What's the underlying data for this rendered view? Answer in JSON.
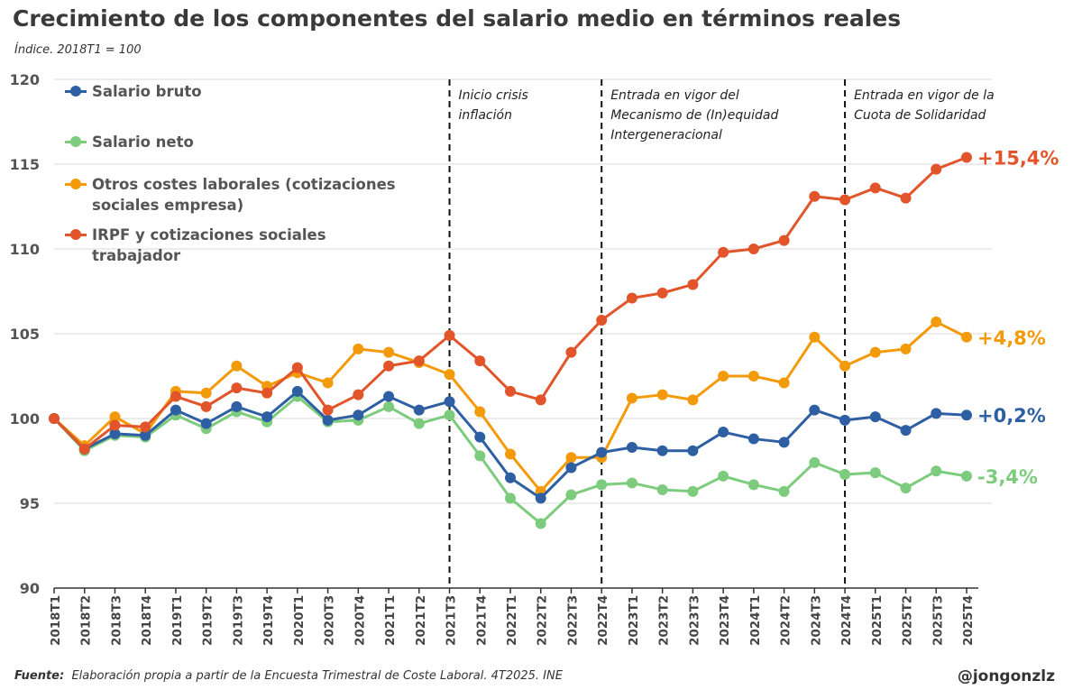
{
  "title": "Crecimiento de los componentes del salario medio en términos reales",
  "subtitle": "Índice. 2018T1 = 100",
  "source_label": "Fuente:",
  "source_text": "Elaboración propia a partir de la Encuesta Trimestral de Coste Laboral. 4T2025. INE",
  "handle": "@jongonzlz",
  "chart_data": {
    "type": "line",
    "title": "Crecimiento de los componentes del salario medio en términos reales",
    "ylabel": "Índice. 2018T1 = 100",
    "ylim": [
      90,
      120
    ],
    "yticks": [
      90,
      95,
      100,
      105,
      110,
      115,
      120
    ],
    "grid": true,
    "legend_position": "top-left",
    "categories": [
      "2018T1",
      "2018T2",
      "2018T3",
      "2018T4",
      "2019T1",
      "2019T2",
      "2019T3",
      "2019T4",
      "2020T1",
      "2020T3",
      "2020T4",
      "2021T1",
      "2021T2",
      "2021T3",
      "2021T4",
      "2022T1",
      "2022T2",
      "2022T3",
      "2022T4",
      "2023T1",
      "2023T2",
      "2023T3",
      "2023T4",
      "2024T1",
      "2024T2",
      "2024T3",
      "2024T4",
      "2025T1",
      "2025T2",
      "2025T3",
      "2025T4"
    ],
    "series": [
      {
        "name": "Salario bruto",
        "color": "#2e5fa3",
        "end_label": "+0,2%",
        "values": [
          100,
          98.2,
          99.1,
          99.0,
          100.5,
          99.7,
          100.7,
          100.1,
          101.6,
          99.9,
          100.2,
          101.3,
          100.5,
          101.0,
          98.9,
          96.5,
          95.3,
          97.1,
          98.0,
          98.3,
          98.1,
          98.1,
          99.2,
          98.8,
          98.6,
          100.5,
          99.9,
          100.1,
          99.3,
          100.3,
          100.2
        ]
      },
      {
        "name": "Salario neto",
        "color": "#7dcb7d",
        "end_label": "-3,4%",
        "values": [
          100,
          98.1,
          99.0,
          98.9,
          100.2,
          99.4,
          100.4,
          99.8,
          101.3,
          99.8,
          99.9,
          100.7,
          99.7,
          100.2,
          97.8,
          95.3,
          93.8,
          95.5,
          96.1,
          96.2,
          95.8,
          95.7,
          96.6,
          96.1,
          95.7,
          97.4,
          96.7,
          96.8,
          95.9,
          96.9,
          96.6
        ]
      },
      {
        "name": "Otros costes laborales (cotizaciones sociales empresa)",
        "color": "#f39a0b",
        "end_label": "+4,8%",
        "values": [
          100,
          98.4,
          100.1,
          99.1,
          101.6,
          101.5,
          103.1,
          101.9,
          102.7,
          102.1,
          104.1,
          103.9,
          103.3,
          102.6,
          100.4,
          97.9,
          95.7,
          97.7,
          97.7,
          101.2,
          101.4,
          101.1,
          102.5,
          102.5,
          102.1,
          104.8,
          103.1,
          103.9,
          104.1,
          105.7,
          104.8
        ]
      },
      {
        "name": "IRPF y cotizaciones sociales trabajador",
        "color": "#e2542a",
        "end_label": "+15,4%",
        "values": [
          100,
          98.2,
          99.6,
          99.5,
          101.3,
          100.7,
          101.8,
          101.5,
          103.0,
          100.5,
          101.4,
          103.1,
          103.4,
          104.9,
          103.4,
          101.6,
          101.1,
          103.9,
          105.8,
          107.1,
          107.4,
          107.9,
          109.8,
          110.0,
          110.5,
          113.1,
          112.9,
          113.6,
          113.0,
          114.7,
          115.4
        ]
      }
    ],
    "draw_order": [
      2,
      1,
      0,
      3
    ],
    "annotations": [
      {
        "at": "2021T3",
        "text": [
          "Inicio crisis",
          "inflación"
        ]
      },
      {
        "at": "2022T4",
        "text": [
          "Entrada en vigor del",
          "Mecanismo de (In)equidad",
          "Intergeneracional"
        ]
      },
      {
        "at": "2024T4",
        "text": [
          "Entrada en vigor de la",
          "Cuota de Solidaridad"
        ]
      }
    ]
  }
}
